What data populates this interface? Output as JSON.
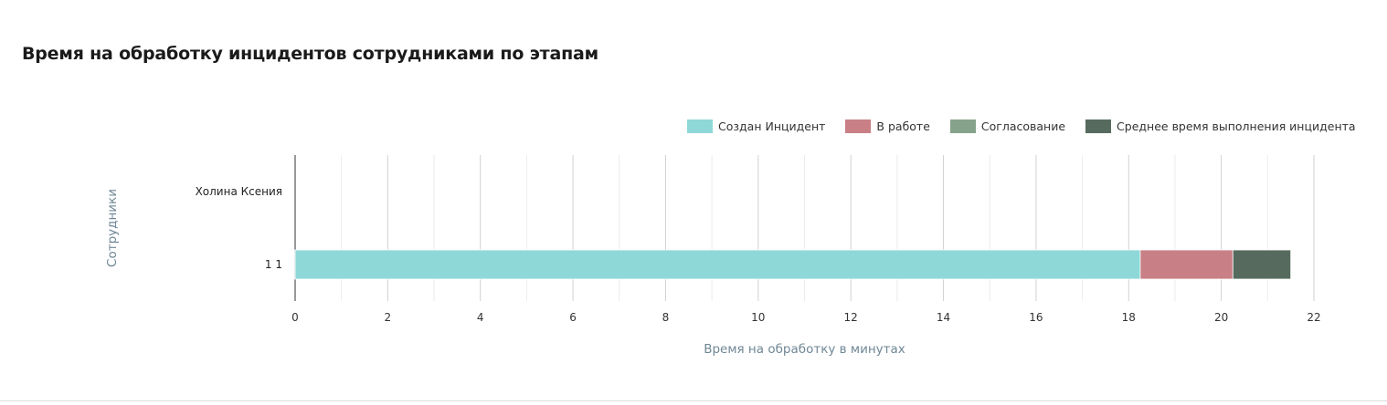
{
  "chart_data": {
    "type": "bar",
    "orientation": "horizontal",
    "stacked": true,
    "title": "Время на обработку инцидентов сотрудниками по этапам",
    "xlabel": "Время на обработку в минутах",
    "ylabel": "Сотрудники",
    "categories": [
      "Холина Ксения",
      "1 1"
    ],
    "xlim": [
      0,
      22
    ],
    "xticks": [
      0,
      2,
      4,
      6,
      8,
      10,
      12,
      14,
      16,
      18,
      20,
      22
    ],
    "grid": true,
    "legend_position": "top-right",
    "series": [
      {
        "name": "Создан Инцидент",
        "color": "#8fd8d8",
        "values": [
          0,
          18.25
        ]
      },
      {
        "name": "В работе",
        "color": "#c97f86",
        "values": [
          0,
          2.0
        ]
      },
      {
        "name": "Согласование",
        "color": "#87a28a",
        "values": [
          0,
          0
        ]
      },
      {
        "name": "Среднее время выполнения инцидента",
        "color": "#566b5e",
        "values": [
          0,
          1.25
        ]
      }
    ]
  }
}
